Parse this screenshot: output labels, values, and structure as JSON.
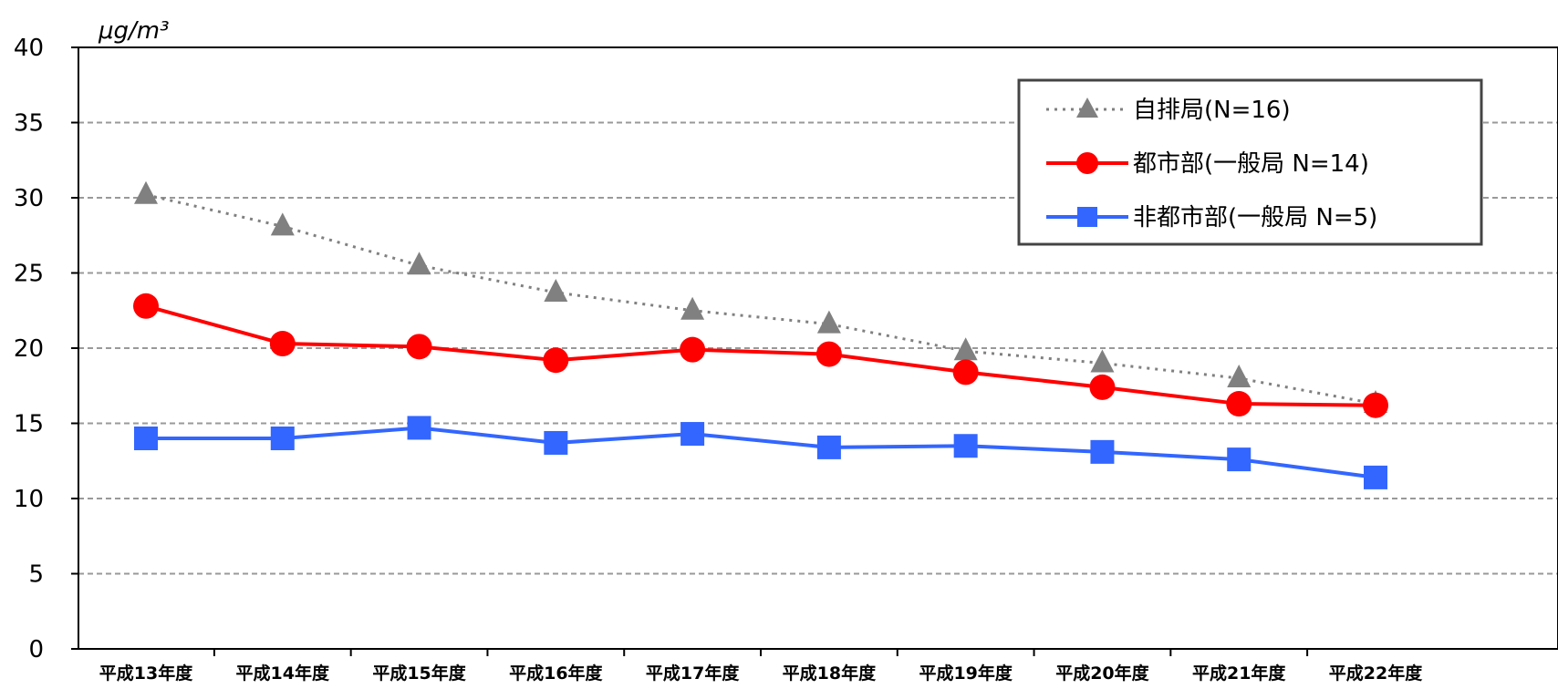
{
  "chart_data": {
    "type": "line",
    "title": "",
    "unit_label": "μg/m³",
    "xlabel": "",
    "ylabel": "",
    "ylim": [
      0,
      40
    ],
    "yticks": [
      0,
      5,
      10,
      15,
      20,
      25,
      30,
      35,
      40
    ],
    "grid": "horizontal dashed",
    "legend_position": "top-right",
    "categories": [
      "平成13年度",
      "平成14年度",
      "平成15年度",
      "平成16年度",
      "平成17年度",
      "平成18年度",
      "平成19年度",
      "平成20年度",
      "平成21年度",
      "平成22年度"
    ],
    "series": [
      {
        "name": "自排局(N=16)",
        "color": "#808080",
        "marker": "triangle",
        "line": "dotted",
        "values": [
          30.2,
          28.1,
          25.5,
          23.7,
          22.5,
          21.6,
          19.8,
          19.0,
          18.0,
          16.3
        ]
      },
      {
        "name": "都市部(一般局 N=14)",
        "color": "#ff0000",
        "marker": "circle",
        "line": "solid",
        "values": [
          22.8,
          20.3,
          20.1,
          19.2,
          19.9,
          19.6,
          18.4,
          17.4,
          16.3,
          16.2
        ]
      },
      {
        "name": "非都市部(一般局 N=5)",
        "color": "#3366ff",
        "marker": "square",
        "line": "solid",
        "values": [
          14.0,
          14.0,
          14.7,
          13.7,
          14.3,
          13.4,
          13.5,
          13.1,
          12.6,
          11.4
        ]
      }
    ]
  }
}
